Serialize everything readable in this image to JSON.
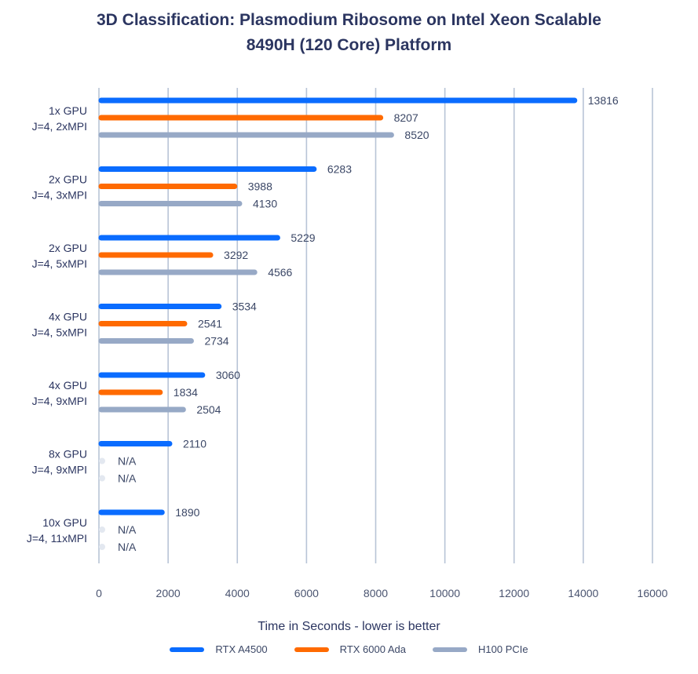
{
  "title_lines": [
    "3D Classification: Plasmodium Ribosome on Intel Xeon Scalable",
    "8490H (120 Core) Platform"
  ],
  "xlabel": "Time in Seconds - lower is better",
  "legend": [
    {
      "name": "RTX A4500",
      "color": "#0a6cff"
    },
    {
      "name": "RTX 6000 Ada",
      "color": "#ff6a00"
    },
    {
      "name": "H100 PCIe",
      "color": "#97a9c6"
    }
  ],
  "chart_data": {
    "type": "bar",
    "orientation": "horizontal",
    "title": "3D Classification: Plasmodium Ribosome on Intel Xeon Scalable 8490H (120 Core) Platform",
    "xlabel": "Time in Seconds - lower is better",
    "xlim": [
      0,
      16000
    ],
    "xticks": [
      0,
      2000,
      4000,
      6000,
      8000,
      10000,
      12000,
      14000,
      16000
    ],
    "grid": true,
    "legend_position": "bottom",
    "categories": [
      [
        "1x GPU",
        "J=4, 2xMPI"
      ],
      [
        "2x GPU",
        "J=4, 3xMPI"
      ],
      [
        "2x GPU",
        "J=4, 5xMPI"
      ],
      [
        "4x GPU",
        "J=4, 5xMPI"
      ],
      [
        "4x GPU",
        "J=4, 9xMPI"
      ],
      [
        "8x GPU",
        "J=4, 9xMPI"
      ],
      [
        "10x GPU",
        "J=4, 11xMPI"
      ]
    ],
    "series": [
      {
        "name": "RTX A4500",
        "color": "#0a6cff",
        "values": [
          13816,
          6283,
          5229,
          3534,
          3060,
          2110,
          1890
        ]
      },
      {
        "name": "RTX 6000 Ada",
        "color": "#ff6a00",
        "values": [
          8207,
          3988,
          3292,
          2541,
          1834,
          null,
          null
        ]
      },
      {
        "name": "H100 PCIe",
        "color": "#97a9c6",
        "values": [
          8520,
          4130,
          4566,
          2734,
          2504,
          null,
          null
        ]
      }
    ],
    "na_label": "N/A"
  }
}
